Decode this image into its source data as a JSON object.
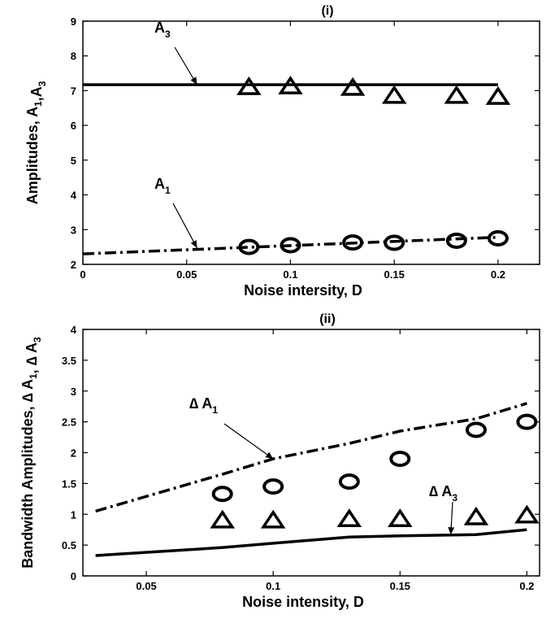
{
  "chart_data": [
    {
      "type": "line",
      "title": "(i)",
      "xlabel": "Noise intersity, D",
      "ylabel": "Amplitudes, A1,A3",
      "xlim": [
        0,
        0.22
      ],
      "ylim": [
        2,
        9
      ],
      "xticks": [
        0,
        0.05,
        0.1,
        0.15,
        0.2
      ],
      "xtick_labels": [
        "0",
        "0.05",
        "0.1",
        "0.15",
        "0.2"
      ],
      "yticks": [
        2,
        3,
        4,
        5,
        6,
        7,
        8,
        9
      ],
      "ytick_labels": [
        "2",
        "3",
        "4",
        "5",
        "6",
        "7",
        "8",
        "9"
      ],
      "grid": false,
      "series": [
        {
          "name": "A3",
          "style": "solid",
          "x": [
            0,
            0.2
          ],
          "y": [
            7.17,
            7.17
          ]
        },
        {
          "name": "A1",
          "style": "dash-dot",
          "x": [
            0,
            0.2
          ],
          "y": [
            2.3,
            2.78
          ]
        },
        {
          "name": "A3",
          "style": "triangle-markers",
          "x": [
            0.08,
            0.1,
            0.13,
            0.15,
            0.18,
            0.2
          ],
          "y": [
            7.1,
            7.12,
            7.08,
            6.85,
            6.85,
            6.82
          ]
        },
        {
          "name": "A1",
          "style": "circle-markers",
          "x": [
            0.08,
            0.1,
            0.13,
            0.15,
            0.18,
            0.2
          ],
          "y": [
            2.5,
            2.55,
            2.63,
            2.62,
            2.68,
            2.75
          ]
        }
      ],
      "annotations": [
        {
          "label": "A",
          "sub": "3",
          "points_to": [
            0.055,
            7.17
          ]
        },
        {
          "label": "A",
          "sub": "1",
          "points_to": [
            0.055,
            2.47
          ]
        }
      ]
    },
    {
      "type": "line",
      "title": "(ii)",
      "xlabel": "Noise intensity, D",
      "ylabel": "Bandwidth Amplitudes, ∆ A1, ∆ A3",
      "xlim": [
        0.025,
        0.205
      ],
      "ylim": [
        0,
        4
      ],
      "xticks": [
        0.05,
        0.1,
        0.15,
        0.2
      ],
      "xtick_labels": [
        "0.05",
        "0.1",
        "0.15",
        "0.2"
      ],
      "yticks": [
        0,
        0.5,
        1,
        1.5,
        2,
        2.5,
        3,
        3.5,
        4
      ],
      "ytick_labels": [
        "0",
        "0.5",
        "1",
        "1.5",
        "2",
        "2.5",
        "3",
        "3.5",
        "4"
      ],
      "grid": false,
      "series": [
        {
          "name": "∆ A1",
          "style": "dash-dot",
          "x": [
            0.03,
            0.08,
            0.1,
            0.13,
            0.15,
            0.18,
            0.2
          ],
          "y": [
            1.05,
            1.65,
            1.9,
            2.15,
            2.35,
            2.55,
            2.8
          ]
        },
        {
          "name": "∆ A3",
          "style": "solid",
          "x": [
            0.03,
            0.08,
            0.1,
            0.13,
            0.15,
            0.18,
            0.2
          ],
          "y": [
            0.33,
            0.46,
            0.53,
            0.63,
            0.65,
            0.67,
            0.75
          ]
        },
        {
          "name": "∆ A1",
          "style": "circle-markers",
          "x": [
            0.08,
            0.1,
            0.13,
            0.15,
            0.18,
            0.2
          ],
          "y": [
            1.33,
            1.45,
            1.53,
            1.9,
            2.37,
            2.5
          ]
        },
        {
          "name": "∆ A3",
          "style": "triangle-markers",
          "x": [
            0.08,
            0.1,
            0.13,
            0.15,
            0.18,
            0.2
          ],
          "y": [
            0.9,
            0.9,
            0.92,
            0.92,
            0.95,
            0.98
          ]
        }
      ],
      "annotations": [
        {
          "label": "∆ A",
          "sub": "1",
          "points_to": [
            0.1,
            1.9
          ]
        },
        {
          "label": "∆ A",
          "sub": "3",
          "points_to": [
            0.17,
            0.67
          ]
        }
      ]
    }
  ]
}
